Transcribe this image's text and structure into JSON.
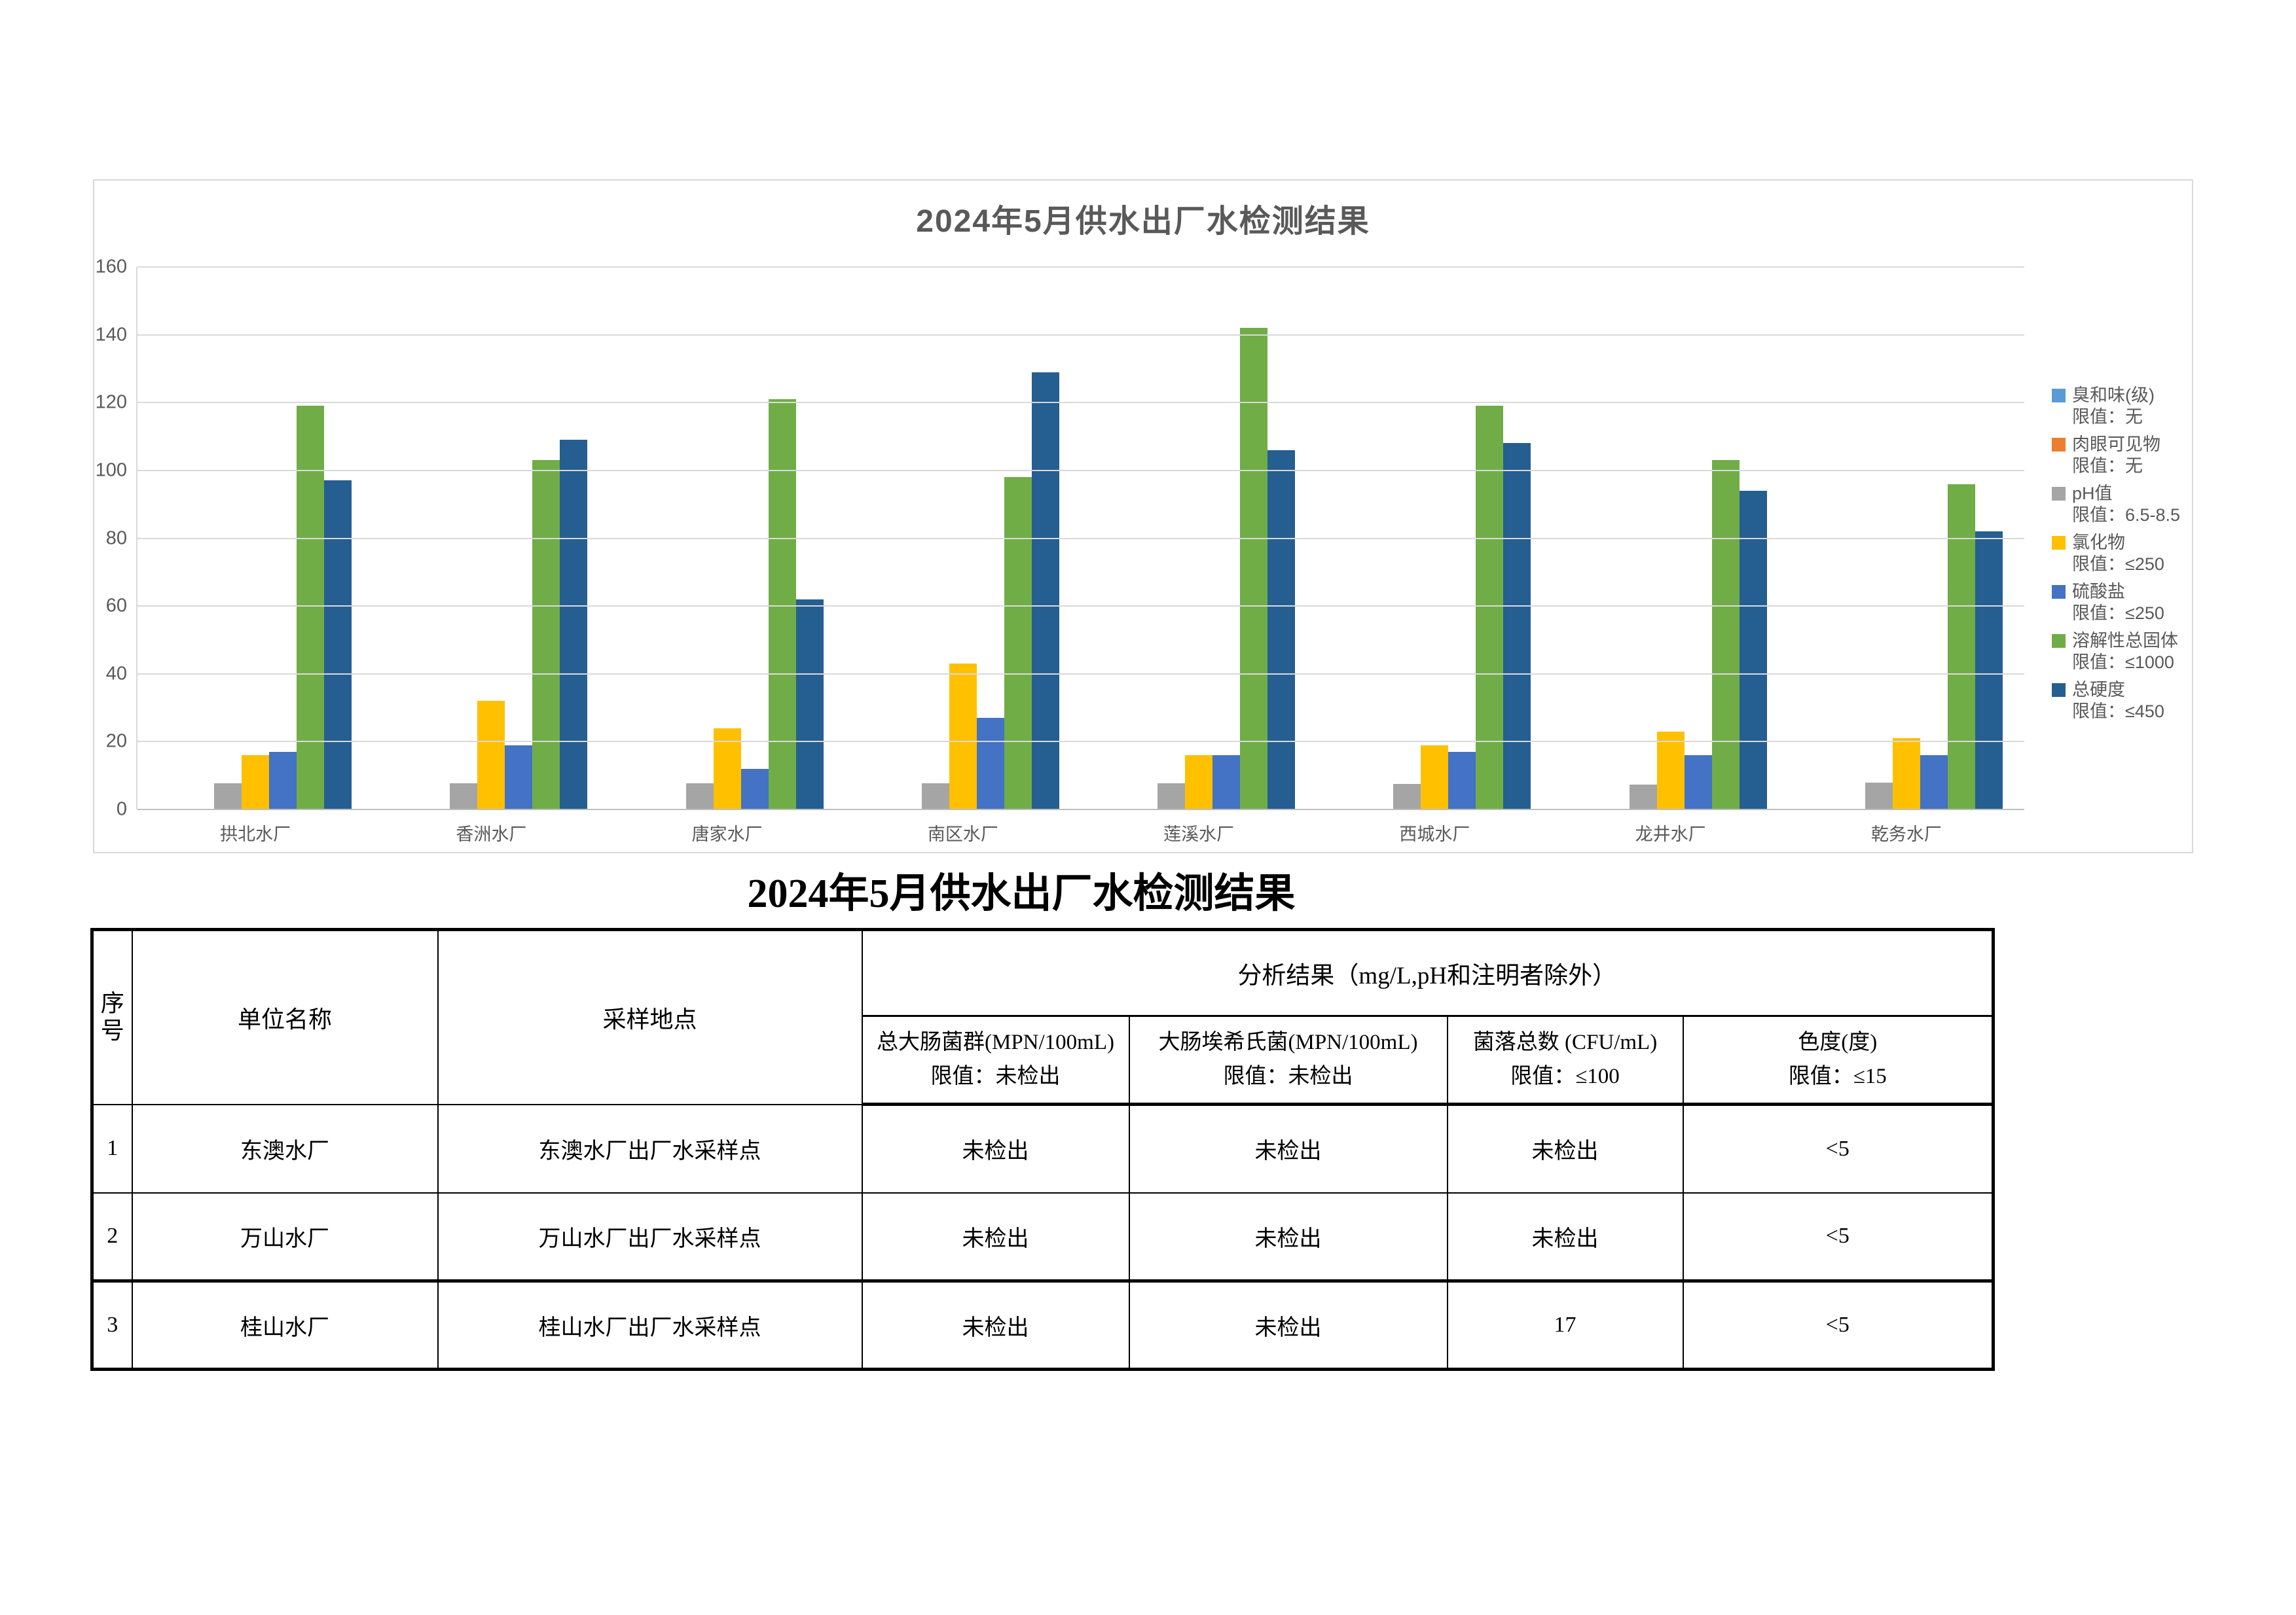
{
  "chart_data": {
    "type": "bar",
    "title": "2024年5月供水出厂水检测结果",
    "categories": [
      "拱北水厂",
      "香洲水厂",
      "唐家水厂",
      "南区水厂",
      "莲溪水厂",
      "西城水厂",
      "龙井水厂",
      "乾务水厂"
    ],
    "series": [
      {
        "name": "臭和味(级)",
        "limit": "限值：无",
        "color": "#5B9BD5",
        "values": [
          0,
          0,
          0,
          0,
          0,
          0,
          0,
          0
        ]
      },
      {
        "name": "肉眼可见物",
        "limit": "限值：无",
        "color": "#ED7D31",
        "values": [
          0,
          0,
          0,
          0,
          0,
          0,
          0,
          0
        ]
      },
      {
        "name": "pH值",
        "limit": "限值：6.5-8.5",
        "color": "#A5A5A5",
        "values": [
          7.8,
          7.8,
          7.8,
          7.8,
          7.8,
          7.5,
          7.3,
          8.0
        ]
      },
      {
        "name": "氯化物",
        "limit": "限值：≤250",
        "color": "#FFC000",
        "values": [
          16,
          32,
          24,
          43,
          16,
          19,
          23,
          21
        ]
      },
      {
        "name": "硫酸盐",
        "limit": "限值：≤250",
        "color": "#4472C4",
        "values": [
          17,
          19,
          12,
          27,
          16,
          17,
          16,
          16
        ]
      },
      {
        "name": "溶解性总固体",
        "limit": "限值：≤1000",
        "color": "#70AD47",
        "values": [
          119,
          103,
          121,
          98,
          142,
          119,
          103,
          96
        ]
      },
      {
        "name": "总硬度",
        "limit": "限值：≤450",
        "color": "#255E91",
        "values": [
          97,
          109,
          62,
          129,
          106,
          108,
          94,
          82
        ]
      }
    ],
    "ylim": [
      0,
      160
    ],
    "ytick_step": 20,
    "xlabel": "",
    "ylabel": "",
    "grid": "on",
    "legend_position": "right",
    "title_color": "#595959",
    "axis_text_color": "#595959",
    "grid_color": "#d9d9d9"
  },
  "table": {
    "title": "2024年5月供水出厂水检测结果",
    "header": {
      "col_index": "序\n号",
      "col_unit": "单位名称",
      "col_location": "采样地点",
      "col_results": "分析结果（mg/L,pH和注明者除外）",
      "sub_cols": [
        {
          "line1": "总大肠菌群(MPN/100mL)",
          "line2": "限值：未检出"
        },
        {
          "line1": "大肠埃希氏菌(MPN/100mL)",
          "line2": "限值：未检出"
        },
        {
          "line1": "菌落总数 (CFU/mL)",
          "line2": "限值：≤100"
        },
        {
          "line1": "色度(度)",
          "line2": "限值：≤15"
        }
      ]
    },
    "rows": [
      {
        "index": "1",
        "unit": "东澳水厂",
        "location": "东澳水厂出厂水采样点",
        "values": [
          "未检出",
          "未检出",
          "未检出",
          "<5"
        ]
      },
      {
        "index": "2",
        "unit": "万山水厂",
        "location": "万山水厂出厂水采样点",
        "values": [
          "未检出",
          "未检出",
          "未检出",
          "<5"
        ]
      },
      {
        "index": "3",
        "unit": "桂山水厂",
        "location": "桂山水厂出厂水采样点",
        "values": [
          "未检出",
          "未检出",
          "17",
          "<5"
        ]
      }
    ]
  }
}
